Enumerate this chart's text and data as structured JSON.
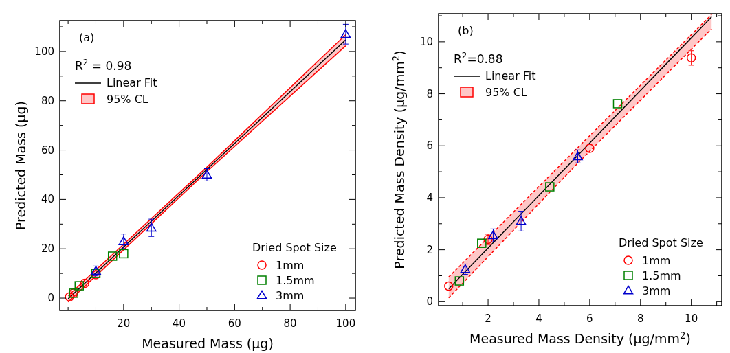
{
  "chart_data": [
    {
      "type": "scatter",
      "xlabel": "Measured Mass (μg)",
      "ylabel": "Predicted Mass (μg)",
      "annotations": [
        "(a)",
        "R$^{2}$  = 0.98"
      ],
      "legend_title": "Dried Spot Size",
      "legend": "bottom right",
      "xlim": [
        -3,
        103.5
      ],
      "ylim": [
        -5,
        112.5
      ],
      "xticks": [
        {
          "value": 0,
          "label": null
        },
        {
          "value": 10,
          "label": null
        },
        20,
        {
          "value": 30,
          "label": null
        },
        40,
        {
          "value": 50,
          "label": null
        },
        60,
        {
          "value": 70,
          "label": null
        },
        80,
        {
          "value": 90,
          "label": null
        },
        100
      ],
      "yticks": [
        0,
        {
          "value": 10,
          "label": null
        },
        20,
        {
          "value": 30,
          "label": null
        },
        40,
        {
          "value": 50,
          "label": null
        },
        60,
        {
          "value": 70,
          "label": null
        },
        80,
        {
          "value": 90,
          "label": null
        },
        100,
        {
          "value": 110,
          "label": null
        }
      ],
      "series": [
        {
          "name": "1mm",
          "marker": "circle",
          "color": "#ff0000",
          "x": [
            0.5,
            2,
            6,
            10
          ],
          "values": [
            0.5,
            2,
            6,
            9.5
          ],
          "errors": [
            null,
            null,
            null,
            null
          ]
        },
        {
          "name": "1.5mm",
          "marker": "square",
          "color": "#008000",
          "x": [
            2,
            4,
            10,
            16,
            20
          ],
          "values": [
            2,
            5,
            10,
            17,
            18
          ],
          "errors": [
            null,
            null,
            null,
            null,
            null
          ]
        },
        {
          "name": "3mm",
          "marker": "triangle",
          "color": "#0000cc",
          "x": [
            10,
            20,
            30,
            50,
            100
          ],
          "values": [
            11,
            23,
            28.5,
            50,
            107
          ],
          "errors": [
            2,
            3,
            3.5,
            2.5,
            4
          ]
        },
        {
          "name": "Linear Fit",
          "type": "line",
          "color": "#000000",
          "x": [
            0,
            50,
            100
          ],
          "values": [
            -0.3,
            52.2,
            104.7
          ],
          "lower": [
            -1.6,
            51.3,
            102.3
          ],
          "upper": [
            1,
            53.1,
            106.8
          ]
        },
        {
          "name": "95% CL",
          "type": "line",
          "color": "#ff0000",
          "line_style": "solid",
          "x": [
            0,
            50,
            100
          ],
          "values": [
            1,
            53.1,
            106.8
          ]
        },
        {
          "type": "line",
          "color": "#ff0000",
          "line_style": "solid",
          "x": [
            0,
            50,
            100
          ],
          "values": [
            -1.6,
            51.3,
            102.3
          ]
        }
      ]
    },
    {
      "type": "scatter",
      "xlabel": "Measured Mass Density (μg/mm$^{2}$)",
      "ylabel": "Predicted Mass Density (μg/mm$^{2}$)",
      "annotations": [
        "(b)",
        "R$^{2}$=0.88"
      ],
      "legend_title": "Dried Spot Size",
      "legend": "bottom right",
      "xlim": [
        0.05,
        11.2
      ],
      "ylim": [
        -0.15,
        11.08
      ],
      "xticks": [
        {
          "value": 1,
          "label": null
        },
        2,
        {
          "value": 3,
          "label": null
        },
        4,
        {
          "value": 5,
          "label": null
        },
        6,
        {
          "value": 7,
          "label": null
        },
        8,
        {
          "value": 9,
          "label": null
        },
        10,
        {
          "value": 11,
          "label": null
        }
      ],
      "yticks": [
        0,
        {
          "value": 1,
          "label": null
        },
        2,
        {
          "value": 3,
          "label": null
        },
        4,
        {
          "value": 5,
          "label": null
        },
        6,
        {
          "value": 7,
          "label": null
        },
        8,
        {
          "value": 9,
          "label": null
        },
        10,
        {
          "value": 11,
          "label": null
        }
      ],
      "series": [
        {
          "name": "1mm",
          "marker": "circle",
          "color": "#ff0000",
          "x": [
            0.45,
            2,
            6,
            10
          ],
          "values": [
            0.6,
            2.4,
            5.9,
            9.38
          ],
          "errors": [
            null,
            0.2,
            null,
            0.28
          ]
        },
        {
          "name": "1.5mm",
          "marker": "square",
          "color": "#008000",
          "x": [
            0.87,
            1.75,
            4.43,
            7.1
          ],
          "values": [
            0.8,
            2.25,
            4.42,
            7.62
          ],
          "errors": [
            null,
            null,
            null,
            null
          ]
        },
        {
          "name": "3mm",
          "marker": "triangle",
          "color": "#0000cc",
          "x": [
            1.1,
            2.2,
            3.3,
            5.53
          ],
          "values": [
            1.25,
            2.55,
            3.1,
            5.59
          ],
          "errors": [
            0.2,
            0.25,
            0.38,
            0.25
          ]
        },
        {
          "name": "Linear Fit",
          "type": "line",
          "color": "#000000",
          "x": [
            0.45,
            5.5,
            10.8
          ],
          "values": [
            0.5,
            5.6,
            10.96
          ],
          "lower": [
            0.15,
            5.3,
            10.5
          ],
          "upper": [
            0.95,
            5.9,
            11.05
          ]
        },
        {
          "name": "95% CL",
          "type": "line",
          "color": "#ff0000",
          "line_style": "dashed",
          "x": [
            0.45,
            5.5,
            10.8
          ],
          "values": [
            0.95,
            5.9,
            11.05
          ]
        },
        {
          "type": "line",
          "color": "#ff0000",
          "line_style": "dashed",
          "x": [
            0.45,
            5.5,
            10.8
          ],
          "values": [
            0.15,
            5.3,
            10.5
          ]
        }
      ]
    }
  ]
}
